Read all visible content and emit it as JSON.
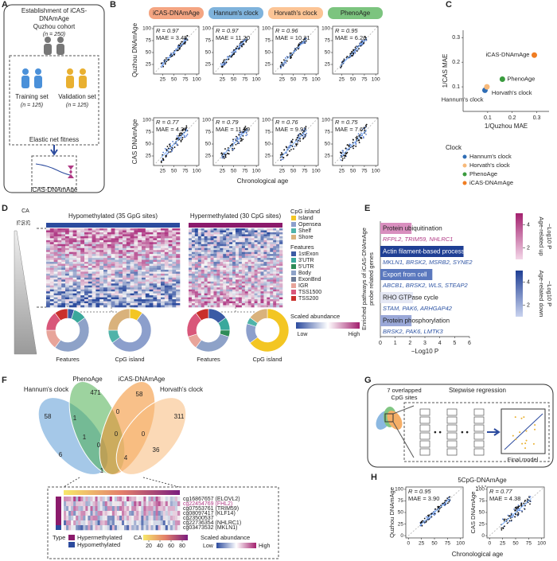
{
  "A": {
    "label": "A",
    "title": [
      "Establishment of iCAS-",
      "DNAmAge"
    ],
    "cohort": "Quzhou cohort",
    "cohort_n": "(n = 250)",
    "training": "Training set",
    "training_n": "(n = 125)",
    "validation": "Validation set",
    "validation_n": "(n = 125)",
    "method": "Elastic net fitness",
    "result": "iCAS-DNAmAge"
  },
  "B": {
    "label": "B",
    "clocks": [
      {
        "name": "iCAS-DNAmAge",
        "color": "#f4a582"
      },
      {
        "name": "Hannum's clock",
        "color": "#7fb3dc"
      },
      {
        "name": "Horvath's clock",
        "color": "#fcc495"
      },
      {
        "name": "PhenoAge",
        "color": "#7cc47f"
      }
    ],
    "y_top": "Quzhou DNAmAge",
    "y_bottom": "CAS DNAmAge",
    "xlabel": "Chronological age",
    "top": [
      [
        "R = 0.97",
        "MAE = 3.45"
      ],
      [
        "R = 0.97",
        "MAE = 11.20"
      ],
      [
        "R = 0.96",
        "MAE = 10.31"
      ],
      [
        "R = 0.95",
        "MAE = 6.26"
      ]
    ],
    "bottom": [
      [
        "R = 0.77",
        "MAE = 4.37"
      ],
      [
        "R = 0.79",
        "MAE = 11.69"
      ],
      [
        "R = 0.76",
        "MAE = 9.92"
      ],
      [
        "R = 0.75",
        "MAE = 7.61"
      ]
    ],
    "xlim": [
      5,
      105
    ],
    "ylim": [
      5,
      105
    ],
    "xticks": [
      25,
      50,
      75,
      100
    ],
    "yticks": [
      25,
      50,
      75,
      100
    ]
  },
  "C": {
    "label": "C",
    "type": "scatter",
    "xlabel": "1/Quzhou MAE",
    "ylabel": "1/CAS MAE",
    "xlim": [
      0,
      0.35
    ],
    "ylim": [
      0,
      0.33
    ],
    "xticks": [
      0.1,
      0.2,
      0.3
    ],
    "yticks": [
      0.1,
      0.2,
      0.3
    ],
    "legend_title": "Clock",
    "series": [
      {
        "name": "Hannum's clock",
        "color": "#2f6db5",
        "x": 0.089,
        "y": 0.086
      },
      {
        "name": "Horvath's clock",
        "color": "#f7b97a",
        "x": 0.097,
        "y": 0.1
      },
      {
        "name": "PhenoAge",
        "color": "#3a9b3e",
        "x": 0.16,
        "y": 0.131
      },
      {
        "name": "iCAS-DNAmAge",
        "color": "#f07d22",
        "x": 0.29,
        "y": 0.229
      }
    ]
  },
  "D": {
    "label": "D",
    "ca_title": "CA",
    "ca_ticks": [
      75,
      50,
      25
    ],
    "hypo": "Hypomethylated (35 GpG sites)",
    "hyper": "Hypermethylated (30 CpG sites)",
    "cpg_title": "CpG island",
    "cpg": [
      {
        "name": "Island",
        "color": "#f3c623"
      },
      {
        "name": "Opensea",
        "color": "#8c9fcc"
      },
      {
        "name": "Shelf",
        "color": "#4fb3a9"
      },
      {
        "name": "Shore",
        "color": "#d9b27c"
      }
    ],
    "features_title": "Features",
    "features": [
      {
        "name": "1stExon",
        "color": "#3b5ba5"
      },
      {
        "name": "3'UTR",
        "color": "#3aa89c"
      },
      {
        "name": "5'UTR",
        "color": "#2e8b57"
      },
      {
        "name": "Body",
        "color": "#8ea2c8"
      },
      {
        "name": "ExonBnd",
        "color": "#6c7a96"
      },
      {
        "name": "IGR",
        "color": "#e8a49a"
      },
      {
        "name": "TSS1500",
        "color": "#d9577a"
      },
      {
        "name": "TSS200",
        "color": "#c9302c"
      }
    ],
    "scale_title": "Scaled abundance",
    "low": "Low",
    "high": "High",
    "donuts": [
      {
        "label": "Features",
        "kind": "features",
        "values": [
          5,
          10,
          0,
          45,
          0,
          15,
          15,
          10
        ]
      },
      {
        "label": "CpG island",
        "kind": "cpg",
        "values": [
          10,
          55,
          10,
          25
        ]
      },
      {
        "label": "Features",
        "kind": "features",
        "values": [
          15,
          10,
          5,
          30,
          0,
          10,
          20,
          10
        ]
      },
      {
        "label": "CpG island",
        "kind": "cpg",
        "values": [
          65,
          15,
          5,
          15
        ]
      }
    ]
  },
  "E": {
    "label": "E",
    "type": "bar",
    "ylabel": [
      "Enriched pathways of iCAS-DNAmAge",
      "probe related genes"
    ],
    "xlabel": "−Log10 P",
    "categories": [
      "Protein ubiquitination",
      "Actin filament-based process",
      "Export from cell",
      "RHO GTPase cycle",
      "Protein phosphorylation"
    ],
    "genes": [
      "RFPL2, TRIM59, NHLRC1",
      "MKLN1, BRSK2, MSRB2, SYNE2",
      "ABCB1, BRSK2, WLS, STEAP2",
      "STAM, PAK6, ARHGAP42",
      "BRSK2, PAK6, LMTK3"
    ],
    "values": [
      2.1,
      5.6,
      3.5,
      2.2,
      2.1
    ],
    "colors": [
      "#d98fbf",
      "#1f3f94",
      "#5a78be",
      "#e4e7f4",
      "#9aa8d8"
    ],
    "gene_colors": [
      "#b03a85",
      "#2f55a4",
      "#2f55a4",
      "#2f55a4",
      "#2f55a4"
    ],
    "xlim": [
      0,
      6
    ],
    "xticks": [
      0,
      1,
      2,
      3,
      4,
      5,
      6
    ],
    "up_title": [
      "Age-related up",
      "−Log10 P"
    ],
    "down_title": [
      "Age-related down",
      "−Log10 P"
    ],
    "cbar_ticks": [
      2,
      4
    ],
    "cbar_lim": [
      1,
      5
    ]
  },
  "F": {
    "label": "F",
    "sets": [
      {
        "name": "Hannum's clock",
        "color": "#5b9bd5"
      },
      {
        "name": "PhenoAge",
        "color": "#4caf50"
      },
      {
        "name": "iCAS-DNAmAge",
        "color": "#f28c28"
      },
      {
        "name": "Horvath's clock",
        "color": "#f7b97a"
      }
    ],
    "counts": [
      471,
      58,
      58,
      311,
      1,
      0,
      0,
      1,
      6,
      0,
      4,
      36,
      1,
      0
    ],
    "genes": [
      "cg16867657 (ELOVL2)",
      "cg22454769 (FHL2)",
      "cg07553761 (TRIM59)",
      "cg08097417 (KLF14)",
      "cg23500537",
      "cg22736354 (NHLRC1)",
      "cg03473532 (MKLN1)"
    ],
    "gene_colors": [
      "#222",
      "#b03a85",
      "#222",
      "#222",
      "#222",
      "#222",
      "#222"
    ],
    "type_title": "Type",
    "types": [
      {
        "name": "Hypermethylated",
        "color": "#8b1a6b"
      },
      {
        "name": "Hypomethylated",
        "color": "#2c4b9e"
      }
    ],
    "ca_title": "CA",
    "ca_ticks": [
      20,
      40,
      60,
      80
    ],
    "ca_lim": [
      10,
      90
    ],
    "scale_title": "Scaled abundance",
    "low": "Low",
    "high": "High"
  },
  "G": {
    "label": "G",
    "sites": [
      "7 overlapped",
      "CpG sites"
    ],
    "method": "Stepwise regression",
    "final": "Final model"
  },
  "H": {
    "label": "H",
    "title": "5CpG-DNAmAge",
    "panels": [
      [
        "R = 0.95",
        "MAE = 3.90"
      ],
      [
        "R = 0.77",
        "MAE = 4.38"
      ]
    ],
    "ylabels": [
      "Quzhou DNAmAge",
      "CAS DNAmAge"
    ],
    "xlabel": "Chronological age",
    "xlim": [
      -5,
      105
    ],
    "ylim": [
      -5,
      105
    ],
    "xticks": [
      0,
      25,
      50,
      75,
      100
    ],
    "yticks": [
      0,
      25,
      50,
      75,
      100
    ]
  }
}
